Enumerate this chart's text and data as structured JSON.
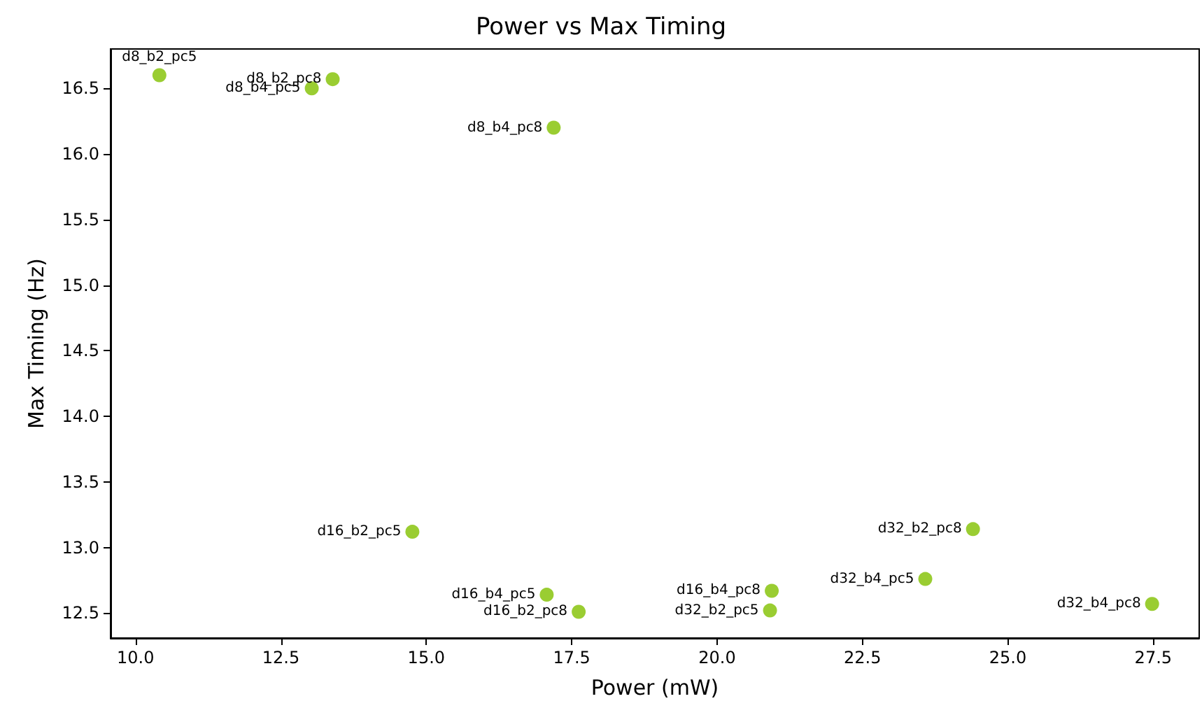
{
  "chart_data": {
    "type": "scatter",
    "title": "Power vs Max Timing",
    "xlabel": "Power (mW)",
    "ylabel": "Max Timing (Hz)",
    "x": [
      10.41,
      13.39,
      13.03,
      17.19,
      14.76,
      17.07,
      17.62,
      20.94,
      20.91,
      24.4,
      23.58,
      27.48
    ],
    "values": [
      16.6,
      16.57,
      16.5,
      16.2,
      13.12,
      12.64,
      12.51,
      12.67,
      12.52,
      13.14,
      12.76,
      12.57
    ],
    "color": "#9acd32",
    "marker": "circle",
    "grid": false,
    "xlim": [
      9.57,
      28.29
    ],
    "xticks": [
      {
        "value": 10,
        "label": "10.0"
      },
      {
        "value": 12.5,
        "label": "12.5"
      },
      {
        "value": 15,
        "label": "15.0"
      },
      {
        "value": 17.5,
        "label": "17.5"
      },
      {
        "value": 20,
        "label": "20.0"
      },
      {
        "value": 22.5,
        "label": "22.5"
      },
      {
        "value": 25,
        "label": "25.0"
      },
      {
        "value": 27.5,
        "label": "27.5"
      }
    ],
    "ylim": [
      12.31,
      16.8
    ],
    "yticks": [
      {
        "value": 12.5,
        "label": "12.5"
      },
      {
        "value": 13,
        "label": "13.0"
      },
      {
        "value": 13.5,
        "label": "13.5"
      },
      {
        "value": 14,
        "label": "14.0"
      },
      {
        "value": 14.5,
        "label": "14.5"
      },
      {
        "value": 15,
        "label": "15.0"
      },
      {
        "value": 15.5,
        "label": "15.5"
      },
      {
        "value": 16,
        "label": "16.0"
      },
      {
        "value": 16.5,
        "label": "16.5"
      }
    ],
    "annotations": [
      {
        "text": "d8_b2_pc5",
        "x": 10.41,
        "y": 16.6
      },
      {
        "text": "d8_b2_pc8",
        "x": 13.39,
        "y": 16.57
      },
      {
        "text": "d8_b4_pc5",
        "x": 13.03,
        "y": 16.5
      },
      {
        "text": "d8_b4_pc8",
        "x": 17.19,
        "y": 16.2
      },
      {
        "text": "d16_b2_pc5",
        "x": 14.76,
        "y": 13.12
      },
      {
        "text": "d16_b4_pc5",
        "x": 17.07,
        "y": 12.64
      },
      {
        "text": "d16_b2_pc8",
        "x": 17.62,
        "y": 12.51
      },
      {
        "text": "d16_b4_pc8",
        "x": 20.94,
        "y": 12.67
      },
      {
        "text": "d32_b2_pc5",
        "x": 20.91,
        "y": 12.52
      },
      {
        "text": "d32_b2_pc8",
        "x": 24.4,
        "y": 13.14
      },
      {
        "text": "d32_b4_pc5",
        "x": 23.58,
        "y": 12.76
      },
      {
        "text": "d32_b4_pc8",
        "x": 27.48,
        "y": 12.57
      }
    ]
  }
}
